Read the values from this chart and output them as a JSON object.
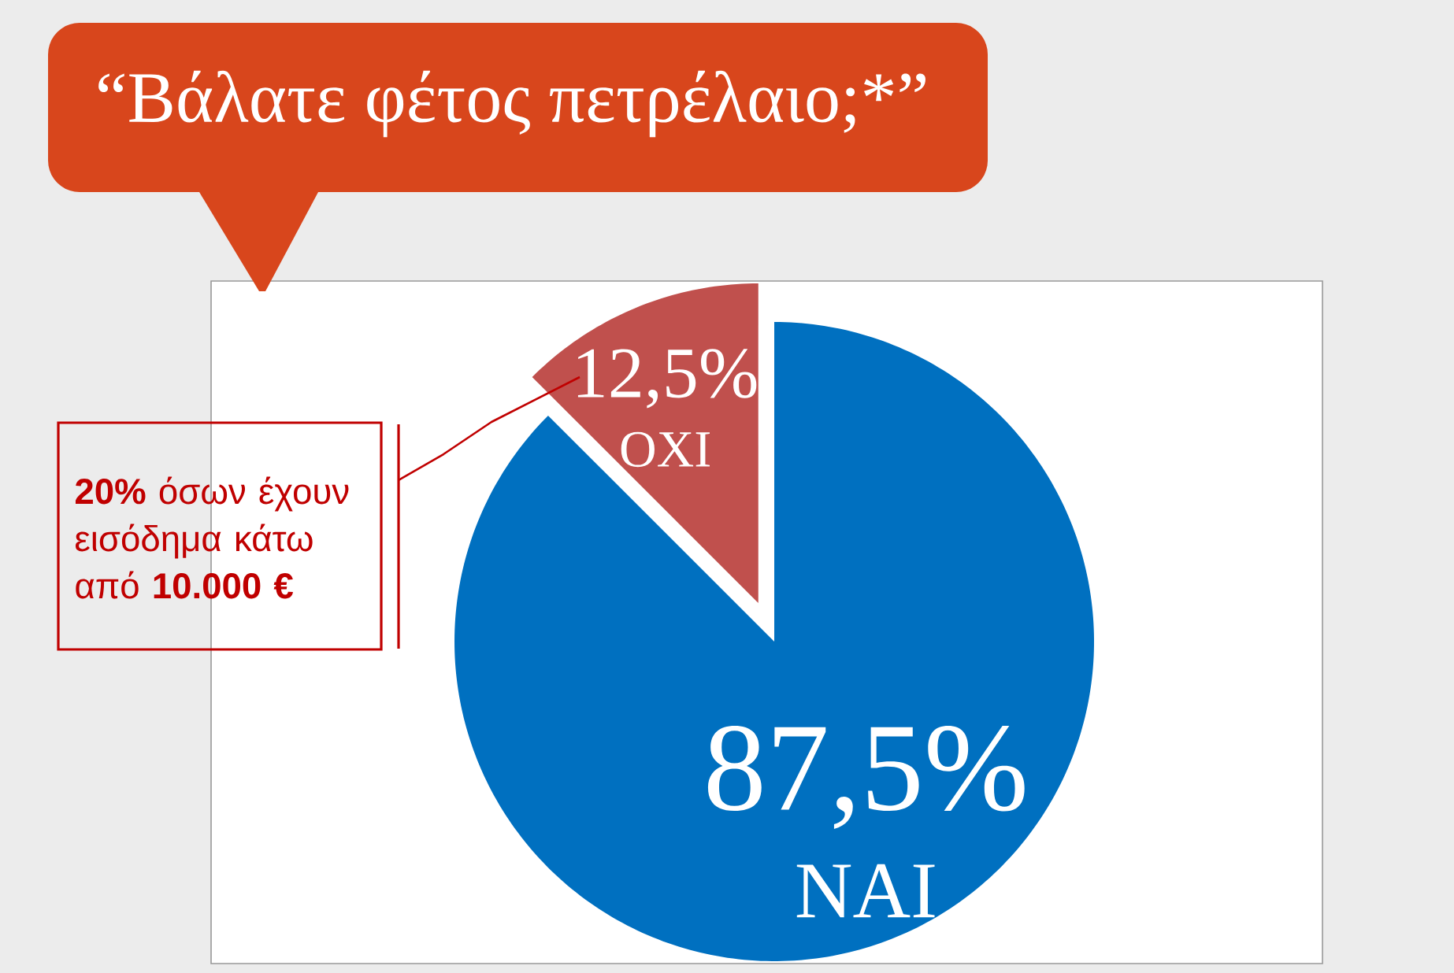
{
  "chart_data": {
    "type": "pie",
    "title": "“Βάλατε φέτος πετρέλαιο;*”",
    "categories": [
      "ΝΑΙ",
      "ΟΧΙ"
    ],
    "values": [
      87.5,
      12.5
    ],
    "colors": [
      "#0070c0",
      "#c0504d"
    ],
    "value_labels": [
      "87,5%",
      "12,5%"
    ],
    "annotations": [
      "**20%** όσων έχουν εισόδημα κάτω από **10.000 €**"
    ]
  }
}
